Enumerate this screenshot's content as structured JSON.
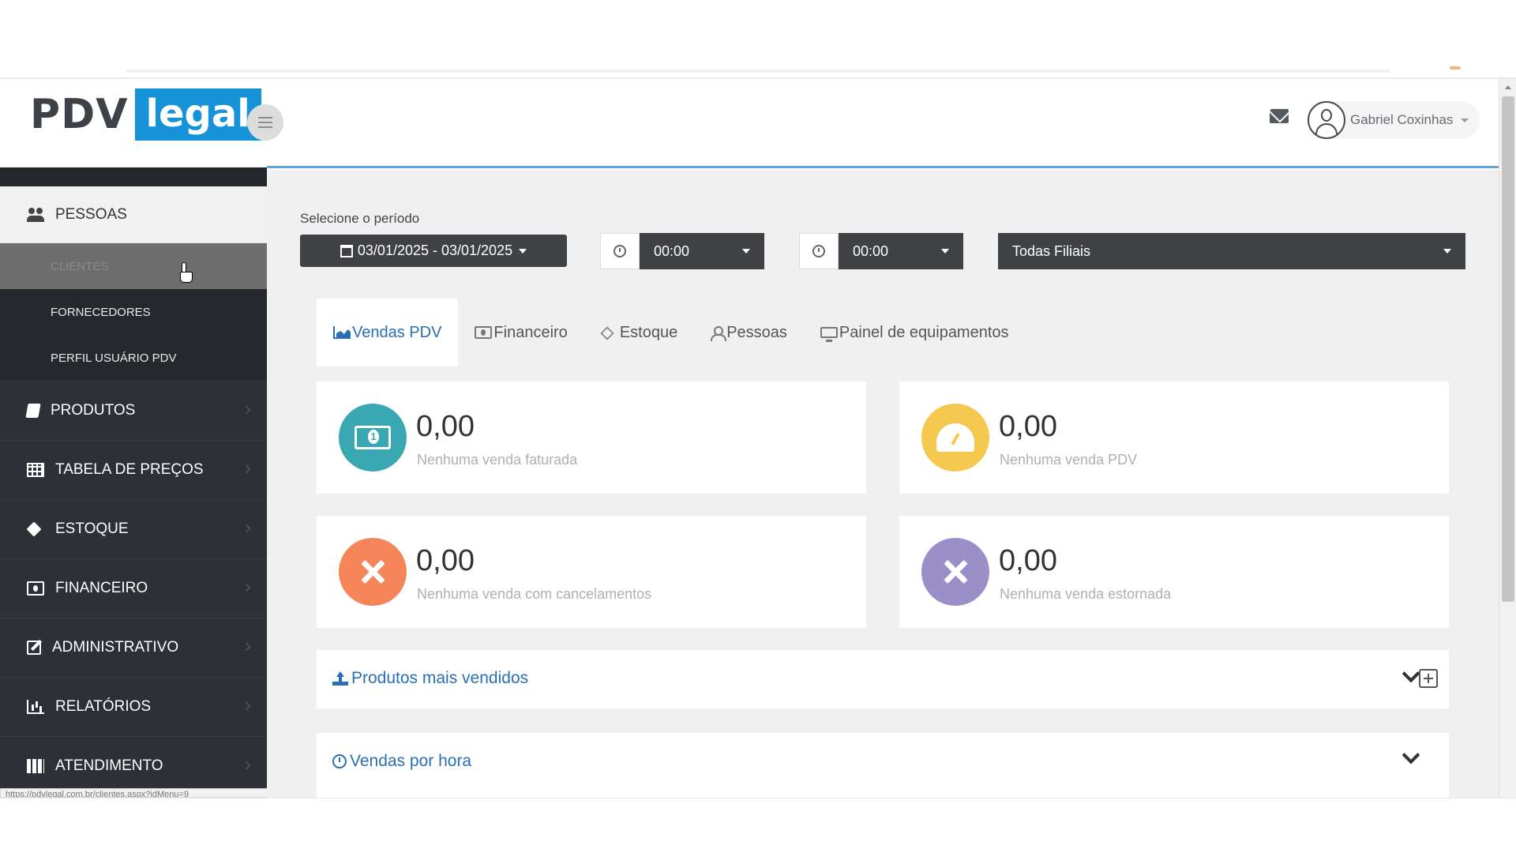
{
  "brand": {
    "logo_dark": "PDV",
    "logo_light": "legal",
    "accent": "#1592d8"
  },
  "header": {
    "user_name": "Gabriel Coxinhas"
  },
  "sidebar": {
    "section_active": "PESSOAS",
    "submenu": [
      "CLIENTES",
      "FORNECEDORES",
      "PERFIL USUÁRIO PDV"
    ],
    "items": [
      "PRODUTOS",
      "TABELA DE PREÇOS",
      "ESTOQUE",
      "FINANCEIRO",
      "ADMINISTRATIVO",
      "RELATÓRIOS",
      "ATENDIMENTO"
    ]
  },
  "status_bar": {
    "url": "https://pdvlegal.com.br/clientes.aspx?idMenu=9"
  },
  "filters": {
    "period_label": "Selecione o período",
    "date_range": "03/01/2025 - 03/01/2025",
    "time_start": "00:00",
    "time_end": "00:00",
    "branch": "Todas Filiais"
  },
  "tabs": [
    "Vendas PDV",
    "Financeiro",
    "Estoque",
    "Pessoas",
    "Painel de equipamentos"
  ],
  "cards": [
    {
      "value": "0,00",
      "desc": "Nenhuma venda faturada",
      "color": "#3aa8b3",
      "icon": "money-icon"
    },
    {
      "value": "0,00",
      "desc": "Nenhuma venda PDV",
      "color": "#f5c94f",
      "icon": "dashboard-icon"
    },
    {
      "value": "0,00",
      "desc": "Nenhuma venda com cancelamentos",
      "color": "#f6865a",
      "icon": "close-icon"
    },
    {
      "value": "0,00",
      "desc": "Nenhuma venda estornada",
      "color": "#9a8fc9",
      "icon": "close-icon"
    }
  ],
  "panels": {
    "top_products": "Produtos mais vendidos",
    "sales_by_hour": "Vendas por hora"
  }
}
